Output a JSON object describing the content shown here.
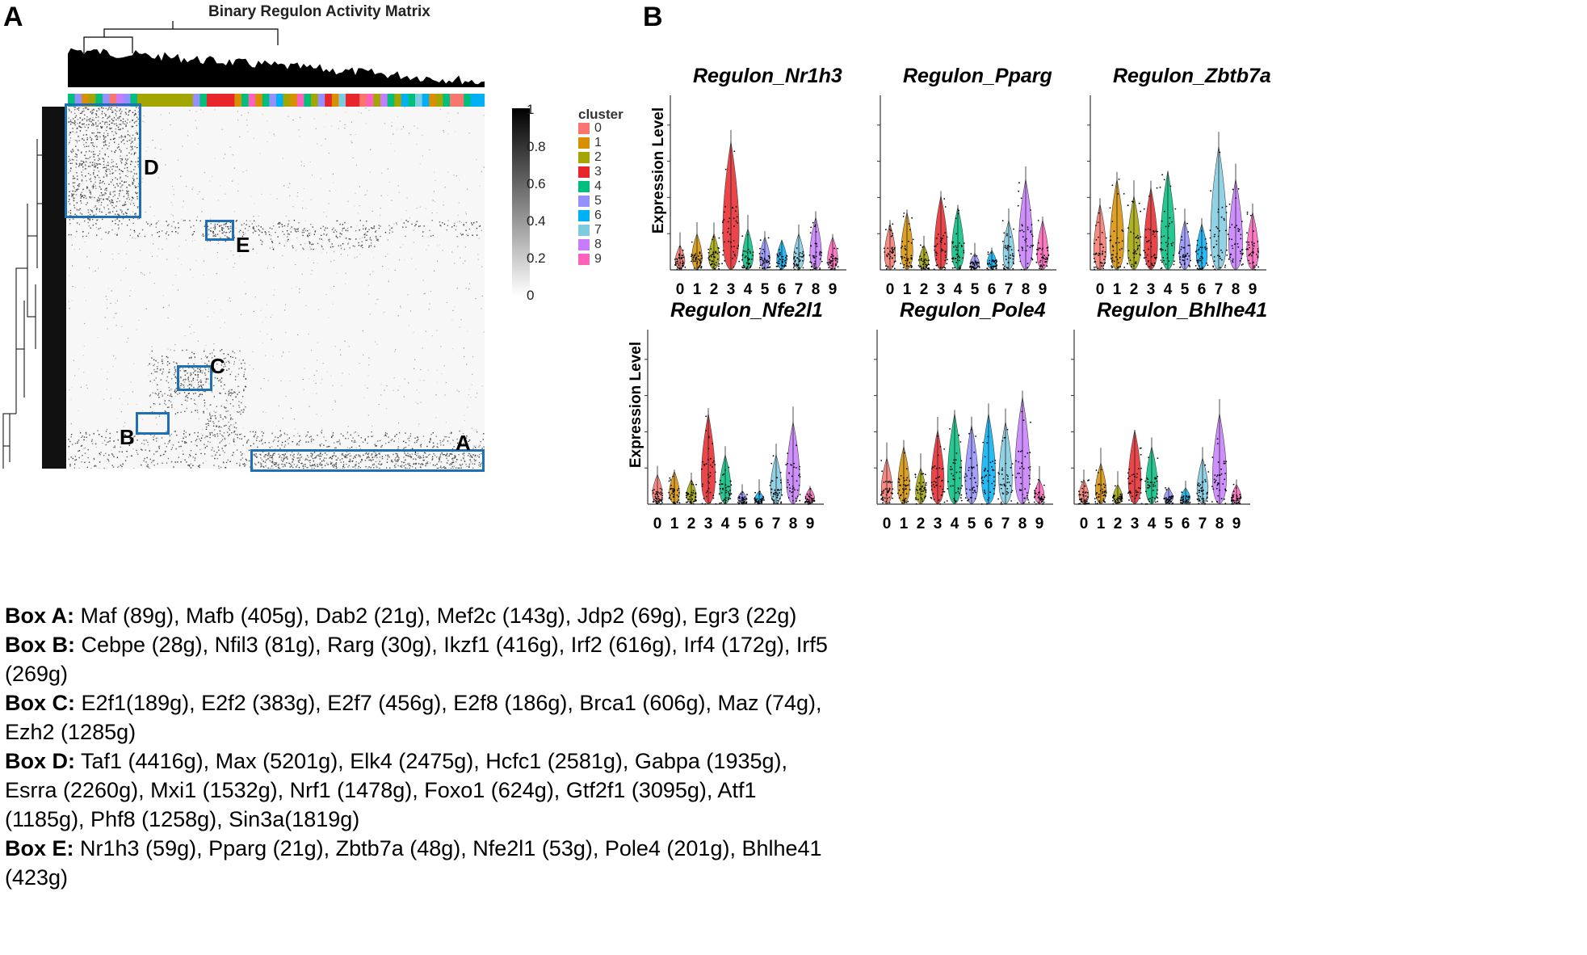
{
  "panel_a": {
    "letter": "A",
    "heatmap_title": "Binary Regulon Activity Matrix",
    "colorbar_ticks": [
      "1",
      "0.8",
      "0.6",
      "0.4",
      "0.2",
      "0"
    ],
    "legend_title": "cluster",
    "clusters": [
      {
        "label": "0",
        "color": "#f8766d"
      },
      {
        "label": "1",
        "color": "#d89000"
      },
      {
        "label": "2",
        "color": "#a3a500"
      },
      {
        "label": "3",
        "color": "#e8252b"
      },
      {
        "label": "4",
        "color": "#00bf7d"
      },
      {
        "label": "5",
        "color": "#9590ff"
      },
      {
        "label": "6",
        "color": "#00b0f6"
      },
      {
        "label": "7",
        "color": "#7ecbe0"
      },
      {
        "label": "8",
        "color": "#c77cff"
      },
      {
        "label": "9",
        "color": "#ff62bc"
      }
    ],
    "box_labels": {
      "a": "A",
      "b": "B",
      "c": "C",
      "d": "D",
      "e": "E"
    },
    "box_descriptions": [
      {
        "name": "Box A:",
        "text": " Maf (89g), Mafb (405g), Dab2 (21g), Mef2c (143g), Jdp2 (69g), Egr3 (22g)"
      },
      {
        "name": "Box B:",
        "text": " Cebpe (28g), Nfil3 (81g), Rarg (30g), Ikzf1 (416g), Irf2 (616g), Irf4 (172g), Irf5 (269g)"
      },
      {
        "name": "Box C:",
        "text": " E2f1(189g), E2f2 (383g), E2f7 (456g), E2f8 (186g), Brca1 (606g), Maz (74g), Ezh2 (1285g)"
      },
      {
        "name": "Box D:",
        "text": " Taf1 (4416g), Max (5201g), Elk4 (2475g), Hcfc1 (2581g), Gabpa (1935g), Esrra (2260g), Mxi1 (1532g), Nrf1 (1478g), Foxo1 (624g), Gtf2f1 (3095g), Atf1 (1185g), Phf8 (1258g), Sin3a(1819g)"
      },
      {
        "name": "Box E:",
        "text": " Nr1h3 (59g), Pparg (21g), Zbtb7a (48g), Nfe2l1 (53g), Pole4 (201g), Bhlhe41 (423g)"
      }
    ]
  },
  "panel_b": {
    "letter": "B",
    "ylabel": "Expression Level",
    "x_categories": [
      "0",
      "1",
      "2",
      "3",
      "4",
      "5",
      "6",
      "7",
      "8",
      "9"
    ],
    "plots": [
      {
        "title": "Regulon_Nr1h3",
        "heights": [
          0.15,
          0.22,
          0.22,
          0.78,
          0.25,
          0.2,
          0.18,
          0.22,
          0.32,
          0.2
        ]
      },
      {
        "title": "Regulon_Pparg",
        "heights": [
          0.28,
          0.35,
          0.15,
          0.45,
          0.38,
          0.1,
          0.12,
          0.3,
          0.55,
          0.3
        ]
      },
      {
        "title": "Regulon_Zbtb7a",
        "heights": [
          0.4,
          0.55,
          0.45,
          0.5,
          0.6,
          0.3,
          0.28,
          0.75,
          0.55,
          0.35
        ]
      },
      {
        "title": "Regulon_Nfe2l1",
        "heights": [
          0.18,
          0.2,
          0.15,
          0.55,
          0.3,
          0.08,
          0.08,
          0.3,
          0.5,
          0.1
        ]
      },
      {
        "title": "Regulon_Pole4",
        "heights": [
          0.28,
          0.35,
          0.22,
          0.45,
          0.55,
          0.48,
          0.55,
          0.5,
          0.65,
          0.15
        ]
      },
      {
        "title": "Regulon_Bhlhe41",
        "heights": [
          0.15,
          0.25,
          0.12,
          0.45,
          0.35,
          0.1,
          0.1,
          0.28,
          0.55,
          0.12
        ]
      }
    ]
  }
}
